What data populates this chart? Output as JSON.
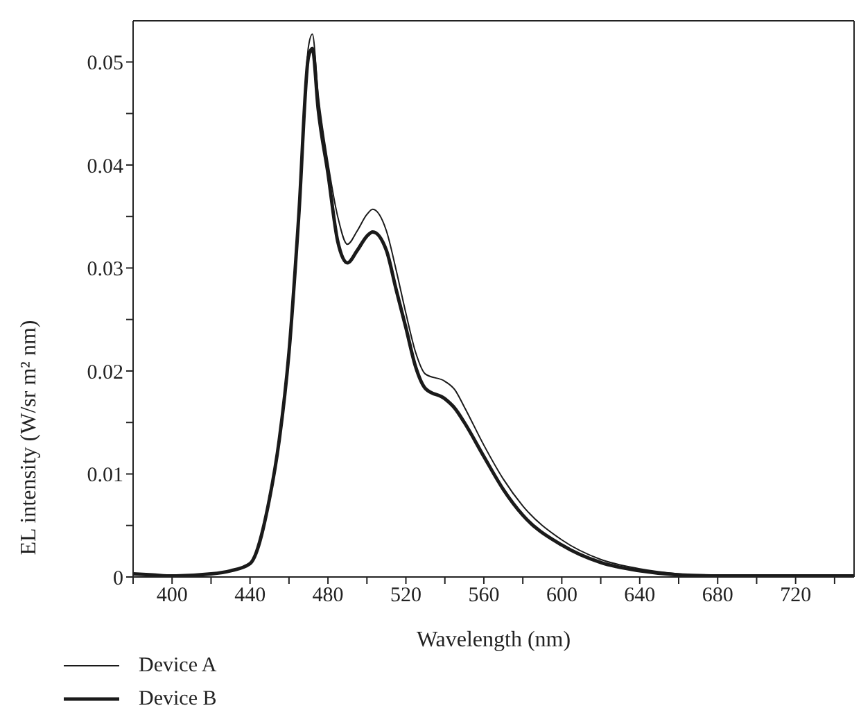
{
  "chart_data": {
    "type": "line",
    "xlabel": "Wavelength (nm)",
    "ylabel": "EL intensity (W/sr m² nm)",
    "x": [
      380,
      390,
      400,
      420,
      430,
      440,
      450,
      455,
      460,
      465,
      470,
      472,
      475,
      480,
      485,
      490,
      495,
      500,
      503,
      510,
      515,
      520,
      525,
      530,
      540,
      545,
      550,
      560,
      570,
      580,
      600,
      620,
      640,
      660,
      680,
      700,
      750
    ],
    "series": [
      {
        "name": "Device A",
        "color": "#1a1a1a",
        "values": [
          0.0003,
          0.0002,
          0.0001,
          0.0003,
          0.0006,
          0.0013,
          0.0076,
          0.0133,
          0.0218,
          0.035,
          0.0515,
          0.0527,
          0.0468,
          0.0402,
          0.035,
          0.0323,
          0.0336,
          0.0352,
          0.0357,
          0.0336,
          0.0298,
          0.0256,
          0.0218,
          0.0197,
          0.019,
          0.0182,
          0.0165,
          0.0128,
          0.0095,
          0.0069,
          0.0036,
          0.0017,
          0.0008,
          0.0003,
          0.0001,
          0.0001,
          0.0001
        ]
      },
      {
        "name": "Device B",
        "color": "#1a1a1a",
        "values": [
          0.0003,
          0.0002,
          0.0001,
          0.0003,
          0.0006,
          0.0013,
          0.0076,
          0.0133,
          0.0218,
          0.035,
          0.0505,
          0.0513,
          0.0454,
          0.0392,
          0.0326,
          0.0305,
          0.0317,
          0.0331,
          0.0335,
          0.0317,
          0.0279,
          0.0242,
          0.0204,
          0.0183,
          0.0173,
          0.0164,
          0.015,
          0.0117,
          0.0085,
          0.006,
          0.0031,
          0.0014,
          0.0006,
          0.0002,
          0.0001,
          0.0001,
          0.0001
        ]
      }
    ],
    "xlim": [
      380,
      750
    ],
    "xticks": [
      {
        "value": 380,
        "label": null
      },
      400,
      {
        "value": 420,
        "label": null
      },
      440,
      {
        "value": 460,
        "label": null
      },
      480,
      {
        "value": 500,
        "label": null
      },
      520,
      {
        "value": 540,
        "label": null
      },
      560,
      {
        "value": 580,
        "label": null
      },
      600,
      {
        "value": 620,
        "label": null
      },
      640,
      {
        "value": 660,
        "label": null
      },
      680,
      {
        "value": 700,
        "label": null
      },
      720,
      {
        "value": 740,
        "label": null
      }
    ],
    "ylim": [
      0,
      0.054
    ],
    "yticks": [
      0,
      {
        "value": 0.005,
        "label": null
      },
      0.01,
      {
        "value": 0.015,
        "label": null
      },
      0.02,
      {
        "value": 0.025,
        "label": null
      },
      0.03,
      {
        "value": 0.035,
        "label": null
      },
      0.04,
      {
        "value": 0.045,
        "label": null
      },
      0.05
    ],
    "grid": false,
    "legend": "bottom",
    "marker": "none",
    "line_style": "solid"
  }
}
